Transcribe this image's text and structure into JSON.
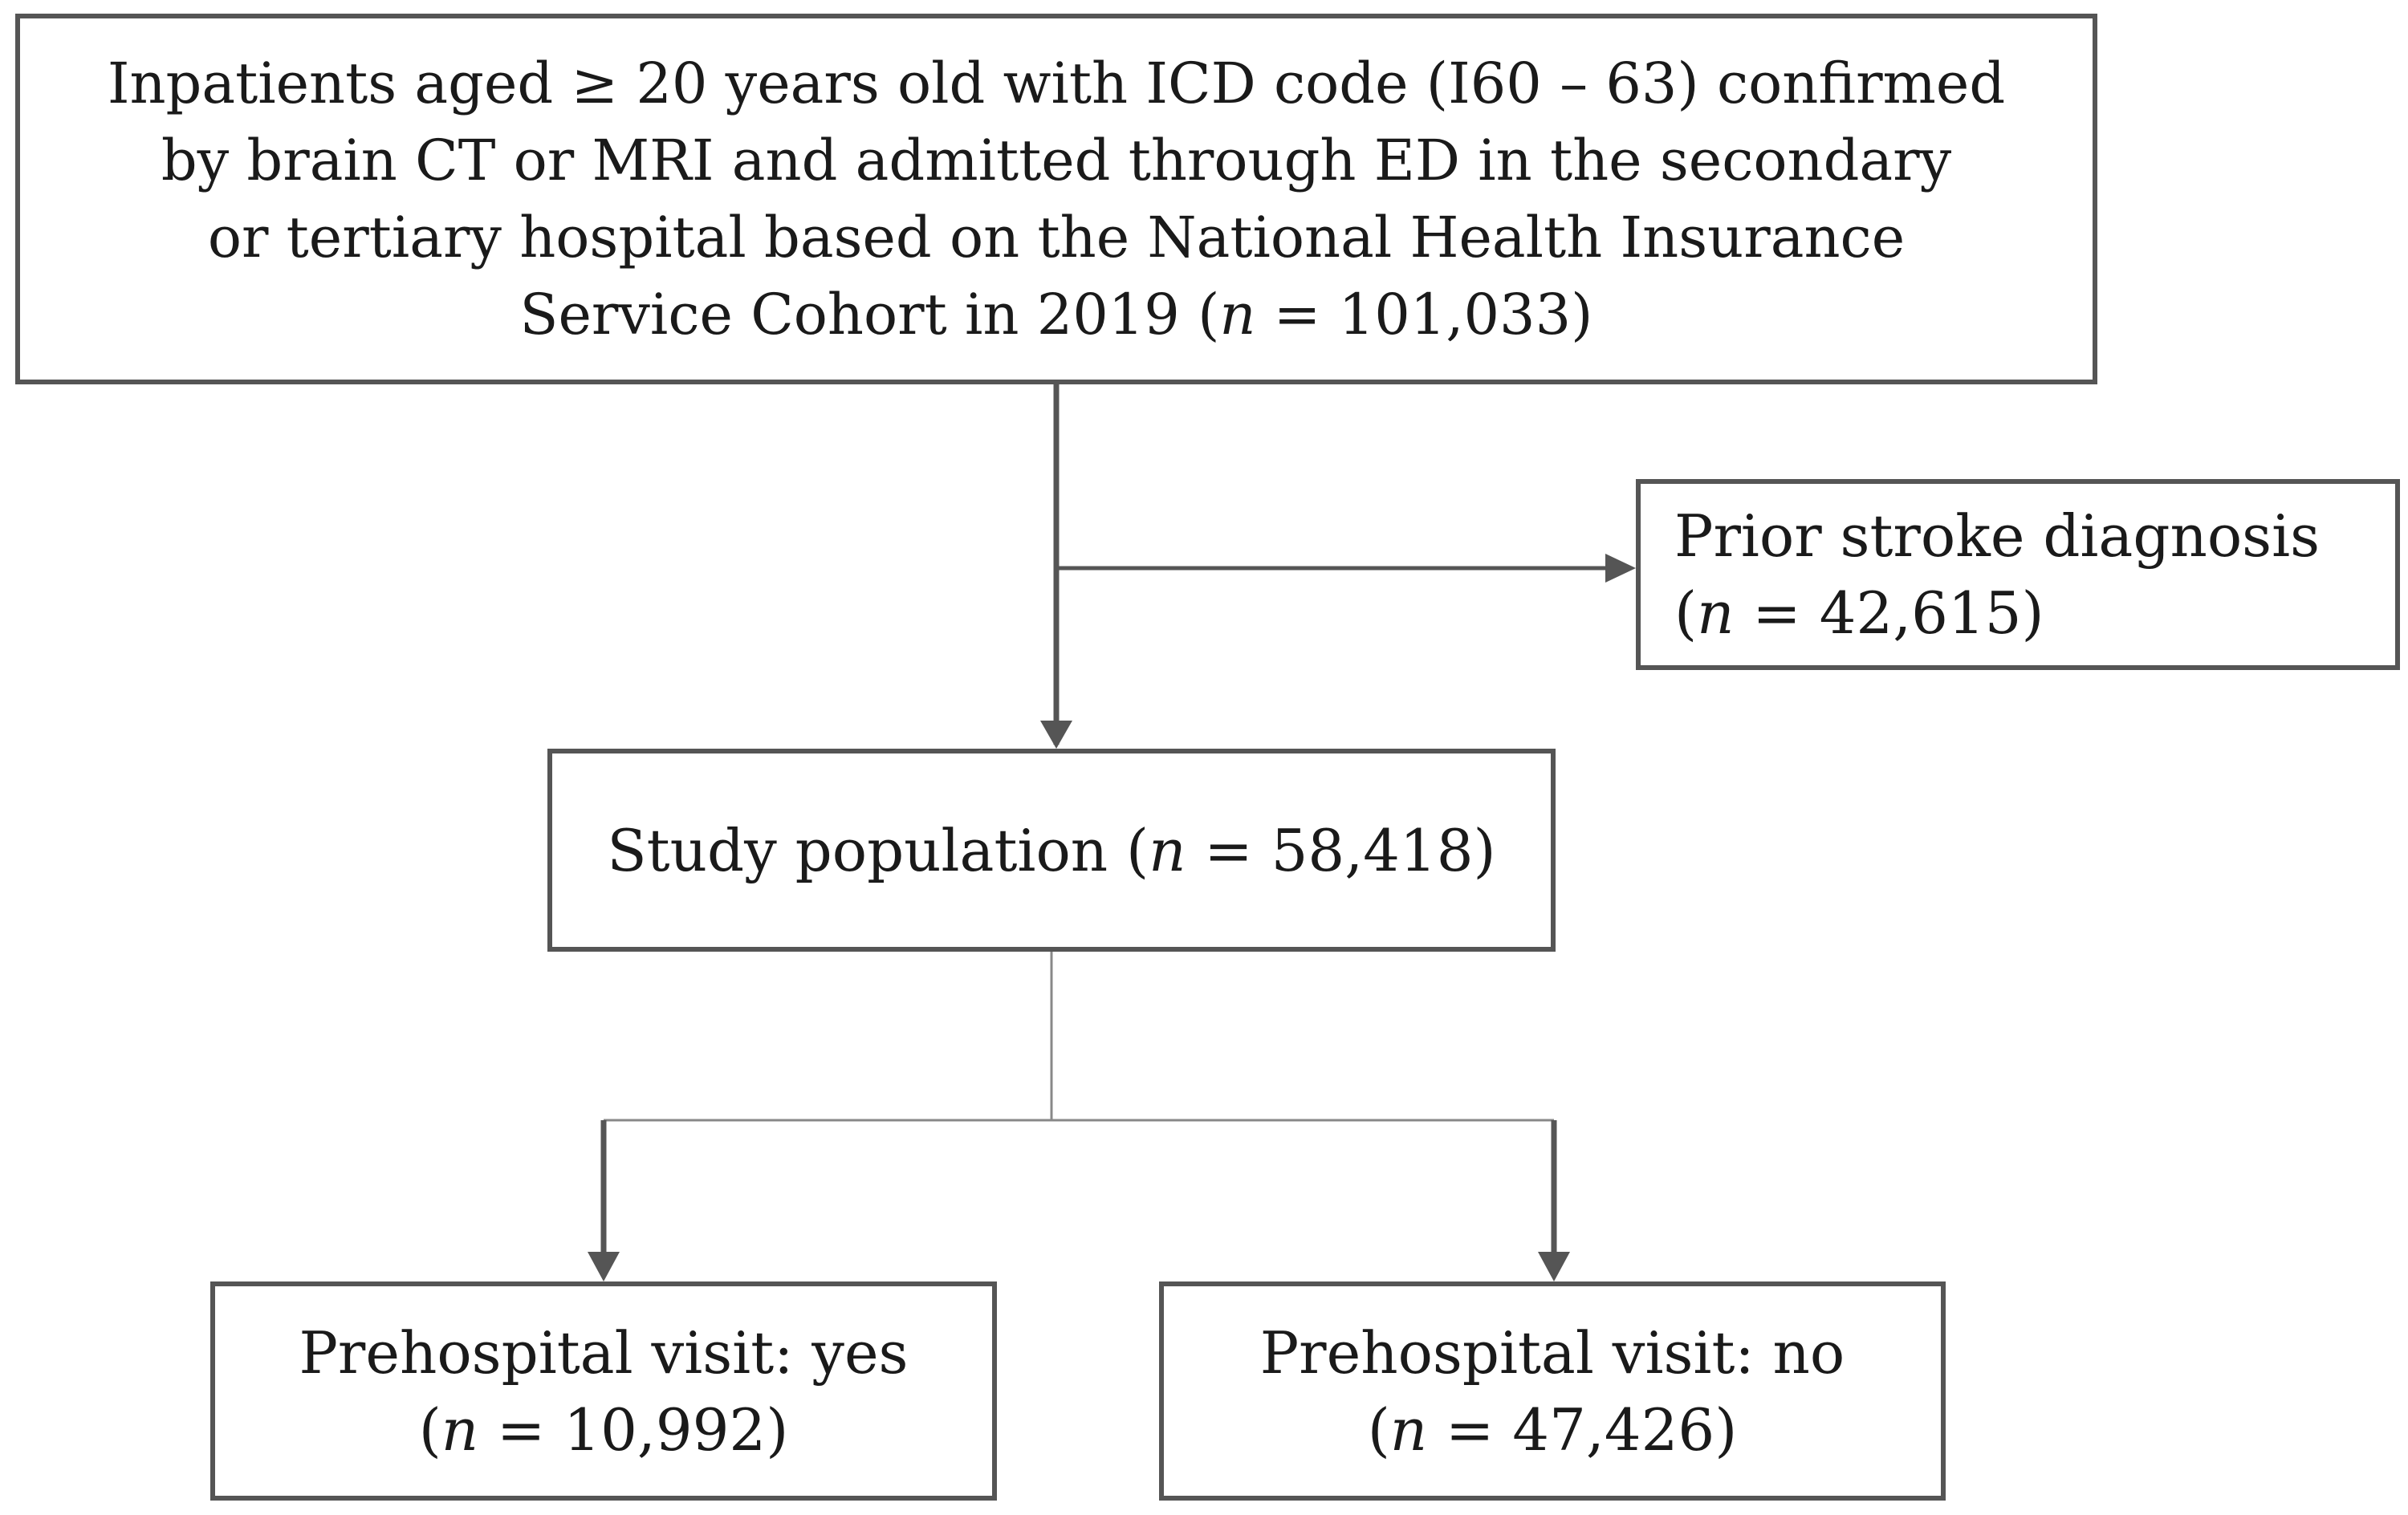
{
  "flowchart": {
    "source": {
      "lines": [
        "Inpatients aged ≥ 20 years old with ICD code (I60 – 63) confirmed",
        "by brain CT or MRI and admitted through ED in the secondary",
        "or tertiary hospital based on the National Health Insurance",
        "Service Cohort in 2019 ("
      ],
      "n_symbol": "n",
      "n_value": " = 101,033)"
    },
    "excluded": {
      "line1": "Prior stroke diagnosis",
      "open": "(",
      "n_symbol": "n",
      "n_value": " = 42,615)"
    },
    "study": {
      "prefix": "Study population (",
      "n_symbol": "n",
      "n_value": " = 58,418)"
    },
    "prehospital_yes": {
      "line1": "Prehospital visit: yes",
      "open": "(",
      "n_symbol": "n",
      "n_value": " = 10,992)"
    },
    "prehospital_no": {
      "line1": "Prehospital visit: no",
      "open": "(",
      "n_symbol": "n",
      "n_value": " = 47,426)"
    },
    "colors": {
      "border": "#555555",
      "text": "#1a1a1a",
      "arrow": "#555555",
      "connector": "#888888"
    }
  }
}
